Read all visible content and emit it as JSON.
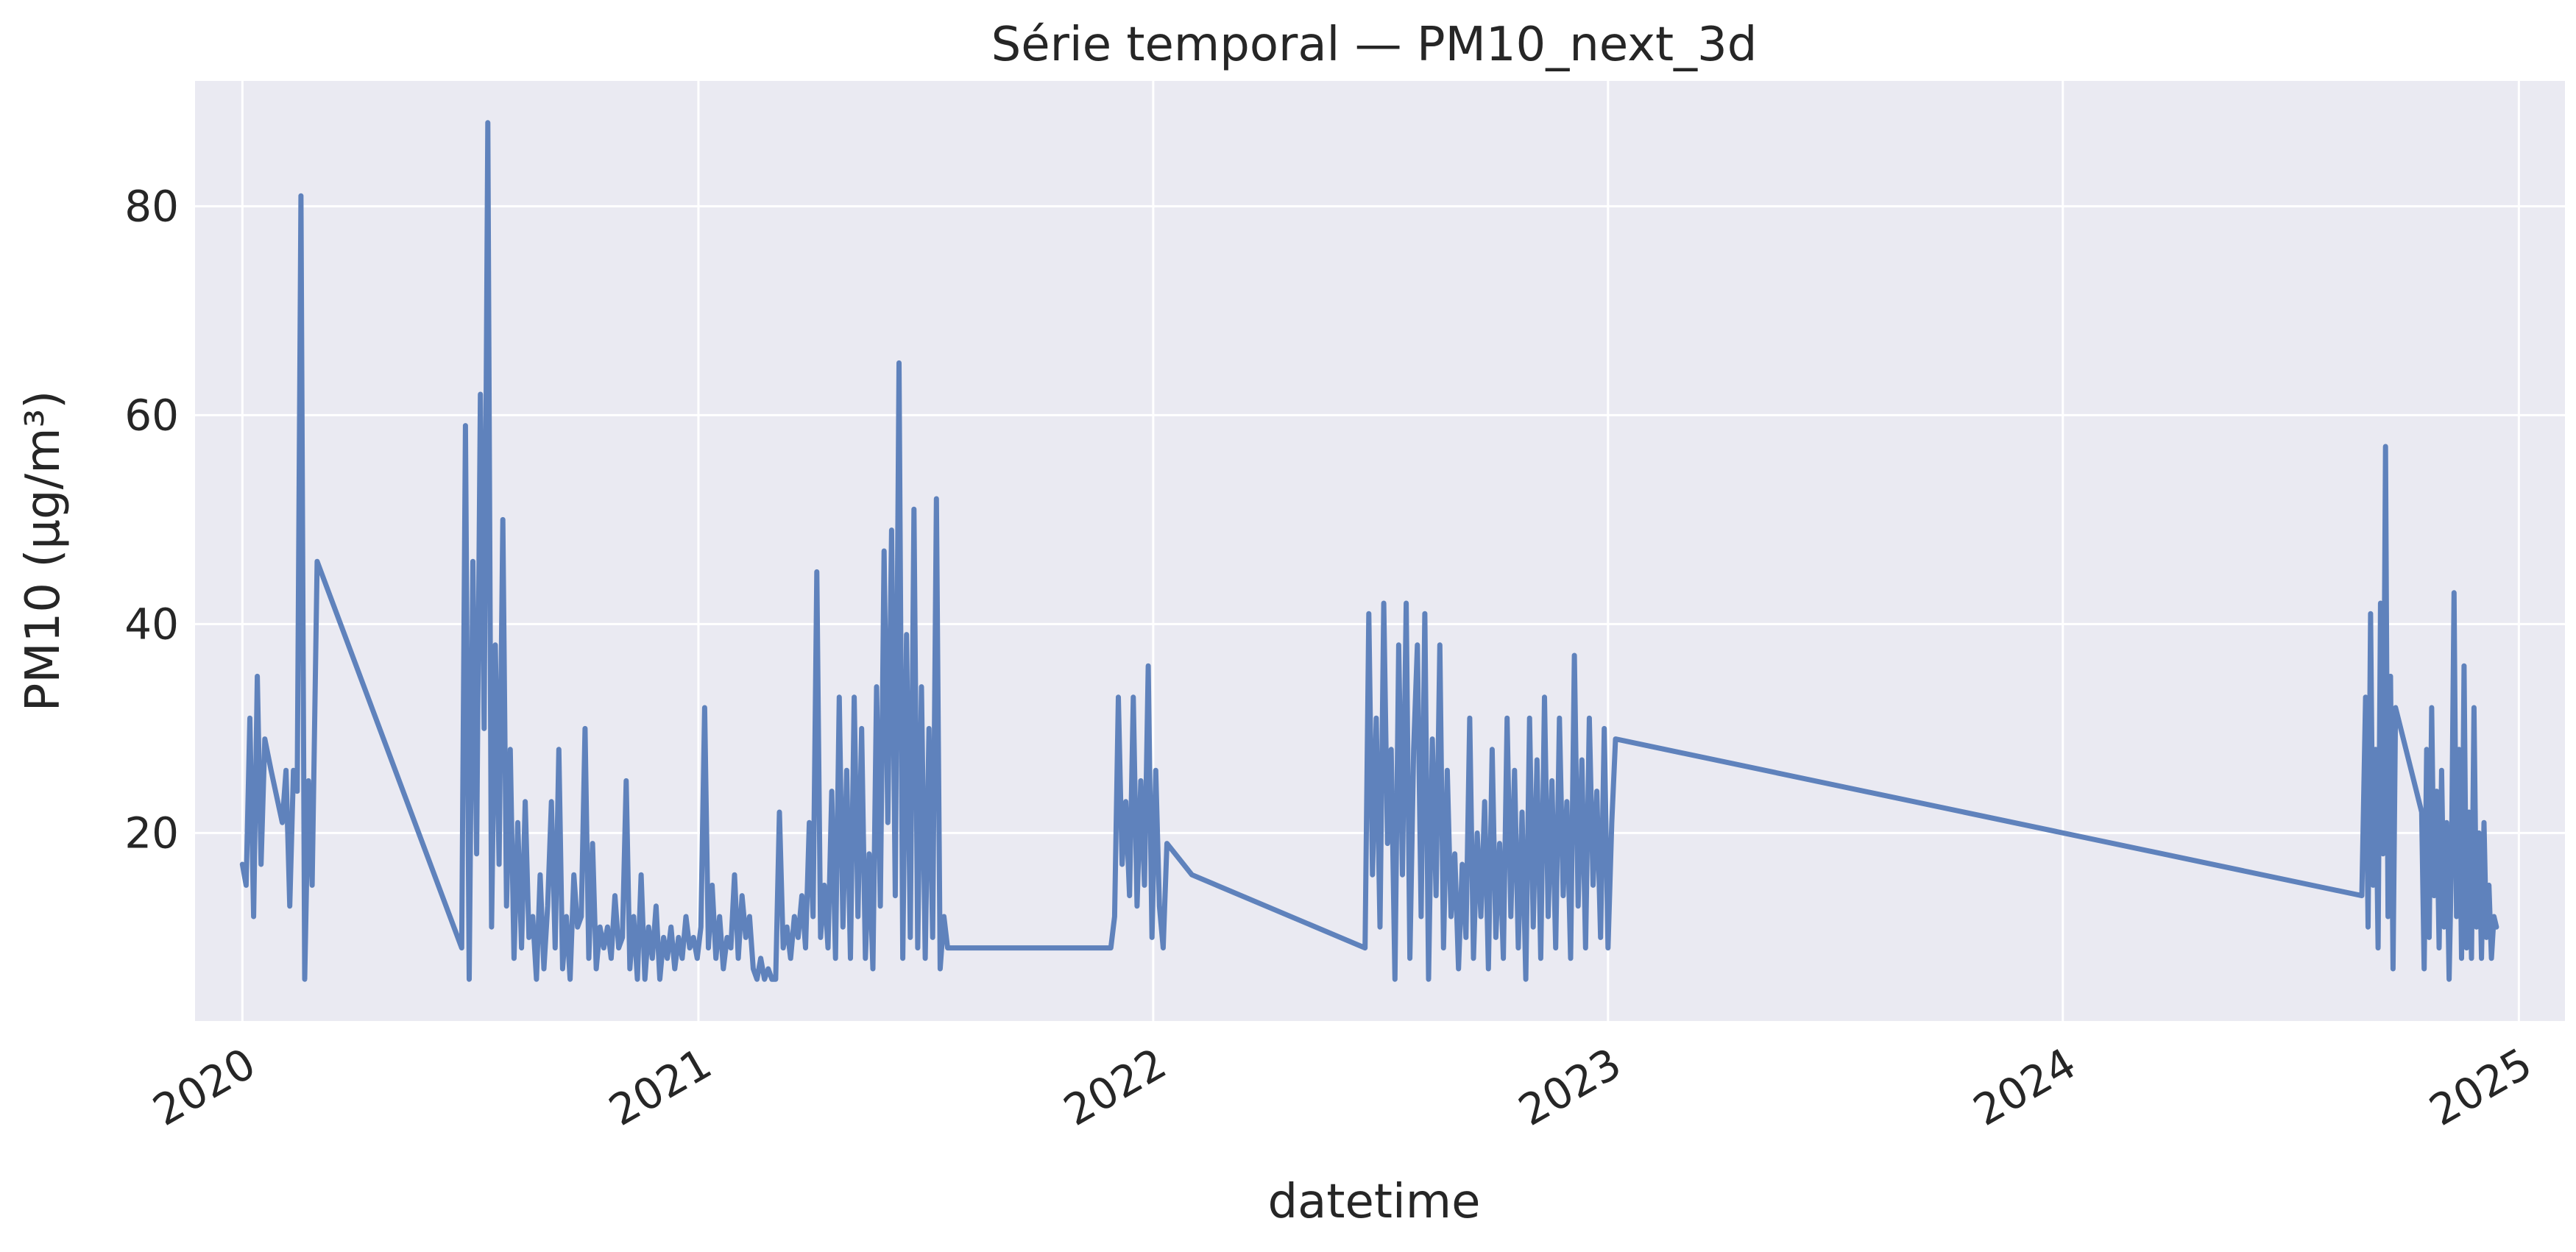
{
  "chart_data": {
    "type": "line",
    "title": "Série temporal — PM10_next_3d",
    "xlabel": "datetime",
    "ylabel": "PM10 (µg/m³)",
    "x_ticks": [
      "2020",
      "2021",
      "2022",
      "2023",
      "2024",
      "2025"
    ],
    "y_ticks": [
      20,
      40,
      60,
      80
    ],
    "xlim": [
      "2019-11-24",
      "2025-02-07"
    ],
    "ylim": [
      2,
      92
    ],
    "grid": true,
    "legend": "none",
    "colors": {
      "line": "#5f82bc",
      "plot_background": "#eaeaf2",
      "grid": "#ffffff",
      "page_background": "#ffffff"
    },
    "series": [
      {
        "points": [
          [
            "2020-01-01",
            17
          ],
          [
            "2020-01-04",
            15
          ],
          [
            "2020-01-07",
            31
          ],
          [
            "2020-01-10",
            12
          ],
          [
            "2020-01-13",
            35
          ],
          [
            "2020-01-16",
            17
          ],
          [
            "2020-01-19",
            29
          ],
          [
            "2020-01-24",
            26
          ],
          [
            "2020-02-02",
            21
          ],
          [
            "2020-02-05",
            26
          ],
          [
            "2020-02-08",
            13
          ],
          [
            "2020-02-11",
            26
          ],
          [
            "2020-02-14",
            24
          ],
          [
            "2020-02-17",
            81
          ],
          [
            "2020-02-20",
            6
          ],
          [
            "2020-02-23",
            25
          ],
          [
            "2020-02-26",
            15
          ],
          [
            "2020-03-01",
            46
          ],
          [
            "2020-06-25",
            9
          ],
          [
            "2020-06-28",
            59
          ],
          [
            "2020-07-01",
            6
          ],
          [
            "2020-07-04",
            46
          ],
          [
            "2020-07-07",
            18
          ],
          [
            "2020-07-10",
            62
          ],
          [
            "2020-07-13",
            30
          ],
          [
            "2020-07-16",
            88
          ],
          [
            "2020-07-19",
            11
          ],
          [
            "2020-07-22",
            38
          ],
          [
            "2020-07-25",
            17
          ],
          [
            "2020-07-28",
            50
          ],
          [
            "2020-07-31",
            13
          ],
          [
            "2020-08-03",
            28
          ],
          [
            "2020-08-06",
            8
          ],
          [
            "2020-08-09",
            21
          ],
          [
            "2020-08-12",
            9
          ],
          [
            "2020-08-15",
            23
          ],
          [
            "2020-08-18",
            10
          ],
          [
            "2020-08-21",
            12
          ],
          [
            "2020-08-24",
            6
          ],
          [
            "2020-08-27",
            16
          ],
          [
            "2020-08-30",
            7
          ],
          [
            "2020-09-02",
            13
          ],
          [
            "2020-09-05",
            23
          ],
          [
            "2020-09-08",
            9
          ],
          [
            "2020-09-11",
            28
          ],
          [
            "2020-09-14",
            7
          ],
          [
            "2020-09-17",
            12
          ],
          [
            "2020-09-20",
            6
          ],
          [
            "2020-09-23",
            16
          ],
          [
            "2020-09-26",
            11
          ],
          [
            "2020-09-29",
            12
          ],
          [
            "2020-10-02",
            30
          ],
          [
            "2020-10-05",
            8
          ],
          [
            "2020-10-08",
            19
          ],
          [
            "2020-10-11",
            7
          ],
          [
            "2020-10-14",
            11
          ],
          [
            "2020-10-17",
            9
          ],
          [
            "2020-10-20",
            11
          ],
          [
            "2020-10-23",
            8
          ],
          [
            "2020-10-26",
            14
          ],
          [
            "2020-10-29",
            9
          ],
          [
            "2020-11-01",
            10
          ],
          [
            "2020-11-04",
            25
          ],
          [
            "2020-11-07",
            7
          ],
          [
            "2020-11-10",
            12
          ],
          [
            "2020-11-13",
            6
          ],
          [
            "2020-11-16",
            16
          ],
          [
            "2020-11-19",
            6
          ],
          [
            "2020-11-22",
            11
          ],
          [
            "2020-11-25",
            8
          ],
          [
            "2020-11-28",
            13
          ],
          [
            "2020-12-01",
            6
          ],
          [
            "2020-12-04",
            10
          ],
          [
            "2020-12-07",
            8
          ],
          [
            "2020-12-10",
            11
          ],
          [
            "2020-12-13",
            7
          ],
          [
            "2020-12-16",
            10
          ],
          [
            "2020-12-19",
            8
          ],
          [
            "2020-12-22",
            12
          ],
          [
            "2020-12-25",
            9
          ],
          [
            "2020-12-28",
            10
          ],
          [
            "2020-12-31",
            8
          ],
          [
            "2021-01-03",
            11
          ],
          [
            "2021-01-06",
            32
          ],
          [
            "2021-01-09",
            9
          ],
          [
            "2021-01-12",
            15
          ],
          [
            "2021-01-15",
            8
          ],
          [
            "2021-01-18",
            12
          ],
          [
            "2021-01-21",
            7
          ],
          [
            "2021-01-24",
            10
          ],
          [
            "2021-01-27",
            9
          ],
          [
            "2021-01-30",
            16
          ],
          [
            "2021-02-02",
            8
          ],
          [
            "2021-02-05",
            14
          ],
          [
            "2021-02-08",
            10
          ],
          [
            "2021-02-11",
            12
          ],
          [
            "2021-02-14",
            7
          ],
          [
            "2021-02-17",
            6
          ],
          [
            "2021-02-20",
            8
          ],
          [
            "2021-02-23",
            6
          ],
          [
            "2021-02-26",
            7
          ],
          [
            "2021-03-01",
            6
          ],
          [
            "2021-03-04",
            6
          ],
          [
            "2021-03-07",
            22
          ],
          [
            "2021-03-10",
            9
          ],
          [
            "2021-03-13",
            11
          ],
          [
            "2021-03-16",
            8
          ],
          [
            "2021-03-19",
            12
          ],
          [
            "2021-03-22",
            10
          ],
          [
            "2021-03-25",
            14
          ],
          [
            "2021-03-28",
            9
          ],
          [
            "2021-03-31",
            21
          ],
          [
            "2021-04-03",
            12
          ],
          [
            "2021-04-06",
            45
          ],
          [
            "2021-04-09",
            10
          ],
          [
            "2021-04-12",
            15
          ],
          [
            "2021-04-15",
            9
          ],
          [
            "2021-04-18",
            24
          ],
          [
            "2021-04-21",
            8
          ],
          [
            "2021-04-24",
            33
          ],
          [
            "2021-04-27",
            11
          ],
          [
            "2021-04-30",
            26
          ],
          [
            "2021-05-03",
            8
          ],
          [
            "2021-05-06",
            33
          ],
          [
            "2021-05-09",
            12
          ],
          [
            "2021-05-12",
            30
          ],
          [
            "2021-05-15",
            8
          ],
          [
            "2021-05-18",
            18
          ],
          [
            "2021-05-21",
            7
          ],
          [
            "2021-05-24",
            34
          ],
          [
            "2021-05-27",
            13
          ],
          [
            "2021-05-30",
            47
          ],
          [
            "2021-06-02",
            21
          ],
          [
            "2021-06-05",
            49
          ],
          [
            "2021-06-08",
            14
          ],
          [
            "2021-06-11",
            65
          ],
          [
            "2021-06-14",
            8
          ],
          [
            "2021-06-17",
            39
          ],
          [
            "2021-06-20",
            10
          ],
          [
            "2021-06-23",
            51
          ],
          [
            "2021-06-26",
            9
          ],
          [
            "2021-06-29",
            34
          ],
          [
            "2021-07-02",
            8
          ],
          [
            "2021-07-05",
            30
          ],
          [
            "2021-07-08",
            10
          ],
          [
            "2021-07-11",
            52
          ],
          [
            "2021-07-14",
            7
          ],
          [
            "2021-07-17",
            12
          ],
          [
            "2021-07-20",
            9
          ],
          [
            "2021-11-28",
            9
          ],
          [
            "2021-12-01",
            12
          ],
          [
            "2021-12-04",
            33
          ],
          [
            "2021-12-07",
            17
          ],
          [
            "2021-12-10",
            23
          ],
          [
            "2021-12-13",
            14
          ],
          [
            "2021-12-16",
            33
          ],
          [
            "2021-12-19",
            13
          ],
          [
            "2021-12-22",
            25
          ],
          [
            "2021-12-25",
            15
          ],
          [
            "2021-12-28",
            36
          ],
          [
            "2021-12-31",
            10
          ],
          [
            "2022-01-03",
            26
          ],
          [
            "2022-01-06",
            13
          ],
          [
            "2022-01-09",
            9
          ],
          [
            "2022-01-12",
            19
          ],
          [
            "2022-02-01",
            16
          ],
          [
            "2022-06-20",
            9
          ],
          [
            "2022-06-23",
            41
          ],
          [
            "2022-06-26",
            16
          ],
          [
            "2022-06-29",
            31
          ],
          [
            "2022-07-02",
            11
          ],
          [
            "2022-07-05",
            42
          ],
          [
            "2022-07-08",
            19
          ],
          [
            "2022-07-11",
            28
          ],
          [
            "2022-07-14",
            6
          ],
          [
            "2022-07-17",
            38
          ],
          [
            "2022-07-20",
            16
          ],
          [
            "2022-07-23",
            42
          ],
          [
            "2022-07-26",
            8
          ],
          [
            "2022-07-29",
            28
          ],
          [
            "2022-08-01",
            38
          ],
          [
            "2022-08-04",
            12
          ],
          [
            "2022-08-07",
            41
          ],
          [
            "2022-08-10",
            6
          ],
          [
            "2022-08-13",
            29
          ],
          [
            "2022-08-16",
            14
          ],
          [
            "2022-08-19",
            38
          ],
          [
            "2022-08-22",
            9
          ],
          [
            "2022-08-25",
            26
          ],
          [
            "2022-08-28",
            12
          ],
          [
            "2022-08-31",
            18
          ],
          [
            "2022-09-03",
            7
          ],
          [
            "2022-09-06",
            17
          ],
          [
            "2022-09-09",
            10
          ],
          [
            "2022-09-12",
            31
          ],
          [
            "2022-09-15",
            8
          ],
          [
            "2022-09-18",
            20
          ],
          [
            "2022-09-21",
            12
          ],
          [
            "2022-09-24",
            23
          ],
          [
            "2022-09-27",
            7
          ],
          [
            "2022-09-30",
            28
          ],
          [
            "2022-10-03",
            10
          ],
          [
            "2022-10-06",
            19
          ],
          [
            "2022-10-09",
            8
          ],
          [
            "2022-10-12",
            31
          ],
          [
            "2022-10-15",
            12
          ],
          [
            "2022-10-18",
            26
          ],
          [
            "2022-10-21",
            9
          ],
          [
            "2022-10-24",
            22
          ],
          [
            "2022-10-27",
            6
          ],
          [
            "2022-10-30",
            31
          ],
          [
            "2022-11-02",
            11
          ],
          [
            "2022-11-05",
            27
          ],
          [
            "2022-11-08",
            8
          ],
          [
            "2022-11-11",
            33
          ],
          [
            "2022-11-14",
            12
          ],
          [
            "2022-11-17",
            25
          ],
          [
            "2022-11-20",
            9
          ],
          [
            "2022-11-23",
            31
          ],
          [
            "2022-11-26",
            14
          ],
          [
            "2022-11-29",
            23
          ],
          [
            "2022-12-02",
            8
          ],
          [
            "2022-12-05",
            37
          ],
          [
            "2022-12-08",
            13
          ],
          [
            "2022-12-11",
            27
          ],
          [
            "2022-12-14",
            9
          ],
          [
            "2022-12-17",
            31
          ],
          [
            "2022-12-20",
            15
          ],
          [
            "2022-12-23",
            24
          ],
          [
            "2022-12-26",
            10
          ],
          [
            "2022-12-29",
            30
          ],
          [
            "2023-01-01",
            9
          ],
          [
            "2023-01-04",
            21
          ],
          [
            "2023-01-07",
            29
          ],
          [
            "2024-08-28",
            14
          ],
          [
            "2024-08-31",
            33
          ],
          [
            "2024-09-02",
            11
          ],
          [
            "2024-09-04",
            41
          ],
          [
            "2024-09-06",
            15
          ],
          [
            "2024-09-08",
            28
          ],
          [
            "2024-09-10",
            9
          ],
          [
            "2024-09-12",
            42
          ],
          [
            "2024-09-14",
            18
          ],
          [
            "2024-09-16",
            57
          ],
          [
            "2024-09-18",
            12
          ],
          [
            "2024-09-20",
            35
          ],
          [
            "2024-09-22",
            7
          ],
          [
            "2024-09-24",
            32
          ],
          [
            "2024-10-15",
            22
          ],
          [
            "2024-10-17",
            7
          ],
          [
            "2024-10-19",
            28
          ],
          [
            "2024-10-21",
            10
          ],
          [
            "2024-10-23",
            32
          ],
          [
            "2024-10-25",
            14
          ],
          [
            "2024-10-27",
            24
          ],
          [
            "2024-10-29",
            9
          ],
          [
            "2024-10-31",
            26
          ],
          [
            "2024-11-02",
            11
          ],
          [
            "2024-11-04",
            21
          ],
          [
            "2024-11-06",
            6
          ],
          [
            "2024-11-08",
            18
          ],
          [
            "2024-11-10",
            43
          ],
          [
            "2024-11-12",
            12
          ],
          [
            "2024-11-14",
            28
          ],
          [
            "2024-11-16",
            8
          ],
          [
            "2024-11-18",
            36
          ],
          [
            "2024-11-20",
            9
          ],
          [
            "2024-11-22",
            22
          ],
          [
            "2024-11-24",
            8
          ],
          [
            "2024-11-26",
            32
          ],
          [
            "2024-11-28",
            11
          ],
          [
            "2024-11-30",
            20
          ],
          [
            "2024-12-02",
            8
          ],
          [
            "2024-12-04",
            21
          ],
          [
            "2024-12-06",
            10
          ],
          [
            "2024-12-08",
            15
          ],
          [
            "2024-12-10",
            8
          ],
          [
            "2024-12-12",
            12
          ],
          [
            "2024-12-14",
            11
          ]
        ]
      }
    ]
  }
}
